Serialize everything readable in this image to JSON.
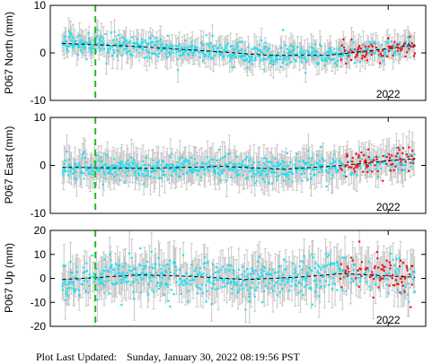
{
  "footer": {
    "label": "Plot Last Updated:",
    "timestamp": "Sunday, January 30, 2022 08:19:56 PST"
  },
  "colors": {
    "recent": "#e8141e",
    "historic": "#1ee0f0",
    "error_bar": "#c8c8c8",
    "trend": "#000000",
    "event_line": "#22bb22"
  },
  "chart_data": [
    {
      "type": "scatter",
      "ylabel": "P067 North (mm)",
      "ylim": [
        -10,
        10
      ],
      "yticks": [
        -10,
        0,
        10
      ],
      "x_range": [
        2019.75,
        2022.25
      ],
      "xtick": {
        "value": 2022.0,
        "label": "2022"
      },
      "event_line_x": 2020.05,
      "recent_from": 2021.68,
      "trend_points": [
        [
          2019.83,
          2.0
        ],
        [
          2020.3,
          1.4
        ],
        [
          2020.8,
          0.4
        ],
        [
          2021.2,
          -0.5
        ],
        [
          2021.6,
          -0.5
        ],
        [
          2022.0,
          0.9
        ],
        [
          2022.18,
          1.7
        ]
      ],
      "scatter_sd": 1.1,
      "error_bar_half": 2.4,
      "outliers": [
        [
          2021.45,
          -4.2
        ],
        [
          2021.3,
          4.8
        ],
        [
          2020.6,
          -3.6
        ]
      ]
    },
    {
      "type": "scatter",
      "ylabel": "P067 East (mm)",
      "ylim": [
        -10,
        10
      ],
      "yticks": [
        -10,
        0,
        10
      ],
      "x_range": [
        2019.75,
        2022.25
      ],
      "xtick": {
        "value": 2022.0,
        "label": "2022"
      },
      "event_line_x": 2020.05,
      "recent_from": 2021.68,
      "trend_points": [
        [
          2019.83,
          -0.4
        ],
        [
          2020.4,
          -0.6
        ],
        [
          2020.9,
          -0.2
        ],
        [
          2021.3,
          -0.8
        ],
        [
          2021.7,
          0.0
        ],
        [
          2022.0,
          1.0
        ],
        [
          2022.18,
          1.4
        ]
      ],
      "scatter_sd": 1.3,
      "error_bar_half": 3.2,
      "outliers": [
        [
          2020.1,
          -4.0
        ],
        [
          2021.55,
          3.8
        ],
        [
          2022.1,
          3.6
        ]
      ]
    },
    {
      "type": "scatter",
      "ylabel": "P067 Up (mm)",
      "ylim": [
        -20,
        20
      ],
      "yticks": [
        -20,
        -10,
        0,
        10,
        20
      ],
      "x_range": [
        2019.75,
        2022.25
      ],
      "xtick": {
        "value": 2022.0,
        "label": "2022"
      },
      "event_line_x": 2020.05,
      "recent_from": 2021.68,
      "trend_points": [
        [
          2019.83,
          -0.5
        ],
        [
          2020.1,
          0.5
        ],
        [
          2020.35,
          1.5
        ],
        [
          2020.7,
          0.8
        ],
        [
          2021.05,
          -0.5
        ],
        [
          2021.4,
          0.5
        ],
        [
          2021.7,
          2.0
        ],
        [
          2022.0,
          1.0
        ],
        [
          2022.18,
          0.5
        ]
      ],
      "scatter_sd": 4.2,
      "error_bar_half": 7.5,
      "outliers": [
        [
          2019.85,
          -9.0
        ],
        [
          2020.35,
          12.5
        ],
        [
          2021.05,
          -13.0
        ],
        [
          2022.15,
          -12.0
        ]
      ]
    }
  ]
}
